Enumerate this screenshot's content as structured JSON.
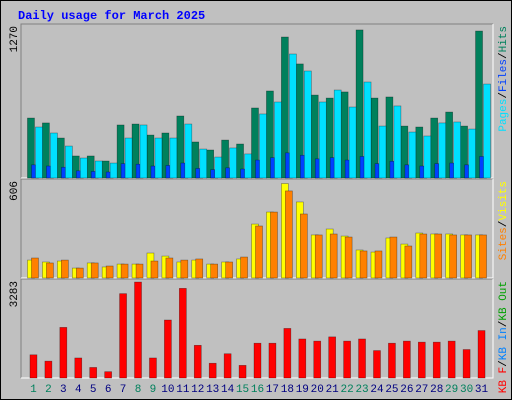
{
  "chart_data": [
    {
      "type": "bar",
      "title": "Daily usage for March 2025",
      "ylim": [
        0,
        1270
      ],
      "yticks": [
        1270
      ],
      "legend_separator": "/",
      "series": [
        {
          "name": "Pages",
          "color": "#00e0ff",
          "values": [
            426,
            376,
            267,
            167,
            142,
            125,
            334,
            443,
            334,
            334,
            451,
            242,
            175,
            251,
            201,
            535,
            635,
            1036,
            894,
            635,
            735,
            593,
            802,
            434,
            602,
            384,
            351,
            460,
            468,
            409,
            785
          ]
        },
        {
          "name": "Files",
          "color": "#0040ff",
          "values": [
            110,
            100,
            90,
            60,
            55,
            50,
            120,
            115,
            100,
            105,
            125,
            80,
            70,
            85,
            75,
            150,
            170,
            210,
            190,
            160,
            170,
            150,
            180,
            120,
            140,
            110,
            100,
            120,
            125,
            110,
            180
          ]
        },
        {
          "name": "Hits",
          "color": "#00805c",
          "values": [
            501,
            460,
            334,
            184,
            184,
            142,
            443,
            451,
            359,
            376,
            518,
            301,
            234,
            317,
            284,
            585,
            727,
            1178,
            953,
            693,
            668,
            719,
            1237,
            668,
            677,
            434,
            426,
            501,
            551,
            434,
            1228
          ]
        }
      ]
    },
    {
      "type": "bar",
      "ylim": [
        0,
        606
      ],
      "yticks": [
        606
      ],
      "legend_separator": "/",
      "series": [
        {
          "name": "Sites",
          "color": "#ff8000",
          "values": [
            125,
            94,
            112,
            62,
            94,
            75,
            87,
            87,
            106,
            125,
            112,
            119,
            87,
            100,
            131,
            325,
            412,
            544,
            400,
            269,
            275,
            256,
            169,
            169,
            256,
            200,
            275,
            275,
            269,
            269,
            269
          ]
        },
        {
          "name": "Visits",
          "color": "#ffff00",
          "values": [
            112,
            100,
            106,
            62,
            94,
            69,
            87,
            87,
            156,
            137,
            100,
            112,
            87,
            100,
            119,
            337,
            412,
            590,
            475,
            269,
            306,
            262,
            175,
            162,
            250,
            212,
            281,
            275,
            275,
            269,
            269
          ]
        }
      ]
    },
    {
      "type": "bar",
      "ylim": [
        0,
        3283
      ],
      "yticks": [
        3283
      ],
      "legend_separator": "/",
      "categories": [
        "1",
        "2",
        "3",
        "4",
        "5",
        "6",
        "7",
        "8",
        "9",
        "10",
        "11",
        "12",
        "13",
        "14",
        "15",
        "16",
        "17",
        "18",
        "19",
        "20",
        "21",
        "22",
        "23",
        "24",
        "25",
        "26",
        "27",
        "28",
        "29",
        "30",
        "31"
      ],
      "category_colors": [
        "#00805c",
        "#00805c",
        "#000080",
        "#000080",
        "#000080",
        "#000080",
        "#000080",
        "#00805c",
        "#00805c",
        "#000080",
        "#000080",
        "#000080",
        "#000080",
        "#000080",
        "#00805c",
        "#00805c",
        "#000080",
        "#000080",
        "#000080",
        "#000080",
        "#000080",
        "#00805c",
        "#00805c",
        "#000080",
        "#000080",
        "#000080",
        "#000080",
        "#000080",
        "#00805c",
        "#00805c",
        "#000080"
      ],
      "series": [
        {
          "name": "KB F",
          "color": "#ff0000",
          "values": [
            785,
            571,
            1713,
            678,
            357,
            214,
            2855,
            3248,
            678,
            1963,
            3034,
            1107,
            500,
            821,
            428,
            1178,
            1178,
            1678,
            1321,
            1249,
            1392,
            1249,
            1321,
            928,
            1178,
            1249,
            1214,
            1214,
            1249,
            964,
            1606
          ]
        },
        {
          "name": "KB In",
          "color": "#0080ff"
        },
        {
          "name": "KB Out",
          "color": "#00a000"
        }
      ]
    }
  ]
}
